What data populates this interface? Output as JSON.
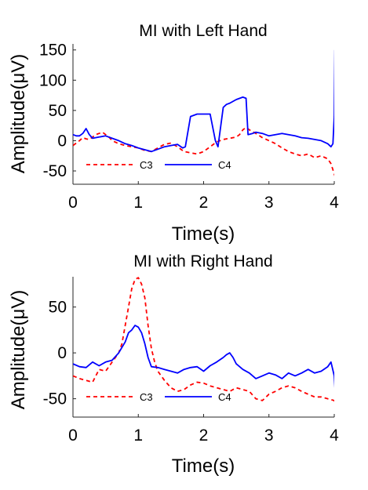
{
  "chart_data": [
    {
      "type": "line",
      "title": "MI with Left Hand",
      "xlabel": "Time(s)",
      "ylabel": "Amplitude(μV)",
      "xlim": [
        0,
        4
      ],
      "ylim": [
        -72,
        160
      ],
      "xticks": [
        "0",
        "1",
        "2",
        "3",
        "4"
      ],
      "yticks": [
        "-50",
        "0",
        "50",
        "100",
        "150"
      ],
      "grid": false,
      "legend_placement": "bottom-left",
      "series": [
        {
          "name": "C3",
          "color": "#ff0000",
          "style": "dashed",
          "x": [
            0,
            0.05,
            0.1,
            0.15,
            0.2,
            0.25,
            0.3,
            0.35,
            0.4,
            0.45,
            0.5,
            0.55,
            0.6,
            0.7,
            0.8,
            0.9,
            1.0,
            1.1,
            1.2,
            1.3,
            1.4,
            1.5,
            1.6,
            1.7,
            1.8,
            1.9,
            2.0,
            2.1,
            2.2,
            2.3,
            2.4,
            2.5,
            2.55,
            2.6,
            2.65,
            2.7,
            2.8,
            2.9,
            3.0,
            3.1,
            3.2,
            3.3,
            3.4,
            3.5,
            3.6,
            3.7,
            3.8,
            3.9,
            3.95,
            4.0,
            4.02
          ],
          "y": [
            -8,
            -4,
            0,
            5,
            3,
            2,
            6,
            10,
            12,
            14,
            10,
            6,
            0,
            -5,
            -8,
            -10,
            -12,
            -16,
            -18,
            -12,
            -6,
            -4,
            -10,
            -18,
            -20,
            -22,
            -18,
            -10,
            -2,
            2,
            4,
            6,
            10,
            18,
            22,
            18,
            12,
            5,
            0,
            -5,
            -12,
            -18,
            -22,
            -25,
            -22,
            -28,
            -25,
            -30,
            -38,
            -55,
            -62
          ]
        },
        {
          "name": "C4",
          "color": "#0000ff",
          "style": "solid",
          "x": [
            0,
            0.05,
            0.1,
            0.15,
            0.2,
            0.25,
            0.3,
            0.4,
            0.5,
            0.6,
            0.7,
            0.8,
            0.9,
            1.0,
            1.1,
            1.2,
            1.3,
            1.4,
            1.5,
            1.6,
            1.68,
            1.72,
            1.8,
            1.9,
            2.0,
            2.1,
            2.18,
            2.22,
            2.3,
            2.35,
            2.4,
            2.5,
            2.6,
            2.65,
            2.68,
            2.75,
            2.8,
            2.9,
            3.0,
            3.1,
            3.2,
            3.3,
            3.4,
            3.5,
            3.6,
            3.7,
            3.8,
            3.9,
            3.95,
            3.98,
            4.0,
            4.01
          ],
          "y": [
            10,
            8,
            8,
            12,
            20,
            10,
            4,
            6,
            8,
            4,
            0,
            -5,
            -8,
            -12,
            -15,
            -18,
            -14,
            -10,
            -8,
            -6,
            -12,
            -10,
            40,
            44,
            44,
            44,
            0,
            -10,
            55,
            60,
            62,
            68,
            72,
            70,
            10,
            12,
            14,
            12,
            8,
            10,
            12,
            10,
            8,
            5,
            4,
            2,
            0,
            -5,
            -10,
            -5,
            40,
            150
          ]
        }
      ]
    },
    {
      "type": "line",
      "title": "MI with Right Hand",
      "xlabel": "Time(s)",
      "ylabel": "Amplitude(μV)",
      "xlim": [
        0,
        4
      ],
      "ylim": [
        -70,
        83
      ],
      "xticks": [
        "0",
        "1",
        "2",
        "3",
        "4"
      ],
      "yticks": [
        "-50",
        "0",
        "50"
      ],
      "grid": false,
      "legend_placement": "bottom-left",
      "series": [
        {
          "name": "C3",
          "color": "#ff0000",
          "style": "dashed",
          "x": [
            0,
            0.1,
            0.2,
            0.3,
            0.4,
            0.5,
            0.6,
            0.7,
            0.75,
            0.8,
            0.85,
            0.9,
            0.95,
            1.0,
            1.05,
            1.1,
            1.15,
            1.2,
            1.25,
            1.3,
            1.4,
            1.5,
            1.6,
            1.7,
            1.8,
            1.9,
            2.0,
            2.1,
            2.2,
            2.3,
            2.4,
            2.5,
            2.6,
            2.7,
            2.8,
            2.9,
            3.0,
            3.1,
            3.2,
            3.3,
            3.4,
            3.5,
            3.6,
            3.7,
            3.8,
            3.9,
            4.0,
            4.02
          ],
          "y": [
            -25,
            -28,
            -30,
            -32,
            -18,
            -20,
            -10,
            0,
            10,
            30,
            50,
            70,
            80,
            82,
            75,
            60,
            30,
            5,
            -10,
            -20,
            -30,
            -38,
            -42,
            -40,
            -35,
            -32,
            -33,
            -36,
            -38,
            -40,
            -42,
            -38,
            -40,
            -42,
            -50,
            -52,
            -45,
            -42,
            -38,
            -36,
            -38,
            -42,
            -45,
            -48,
            -48,
            -50,
            -52,
            -56
          ]
        },
        {
          "name": "C4",
          "color": "#0000ff",
          "style": "solid",
          "x": [
            0,
            0.1,
            0.2,
            0.3,
            0.4,
            0.5,
            0.6,
            0.7,
            0.8,
            0.85,
            0.9,
            0.95,
            1.0,
            1.05,
            1.1,
            1.15,
            1.2,
            1.3,
            1.4,
            1.5,
            1.6,
            1.7,
            1.8,
            1.9,
            2.0,
            2.1,
            2.2,
            2.3,
            2.35,
            2.4,
            2.45,
            2.5,
            2.6,
            2.7,
            2.8,
            2.9,
            3.0,
            3.1,
            3.2,
            3.3,
            3.4,
            3.5,
            3.6,
            3.7,
            3.8,
            3.9,
            3.95,
            4.0,
            4.02
          ],
          "y": [
            -12,
            -15,
            -16,
            -10,
            -14,
            -10,
            -8,
            0,
            12,
            22,
            25,
            30,
            28,
            22,
            10,
            -5,
            -15,
            -16,
            -18,
            -20,
            -22,
            -18,
            -16,
            -15,
            -20,
            -14,
            -10,
            -5,
            -2,
            0,
            -5,
            -12,
            -18,
            -22,
            -28,
            -25,
            -22,
            -24,
            -28,
            -22,
            -25,
            -22,
            -18,
            -22,
            -20,
            -15,
            -10,
            -25,
            -50
          ]
        }
      ]
    }
  ]
}
